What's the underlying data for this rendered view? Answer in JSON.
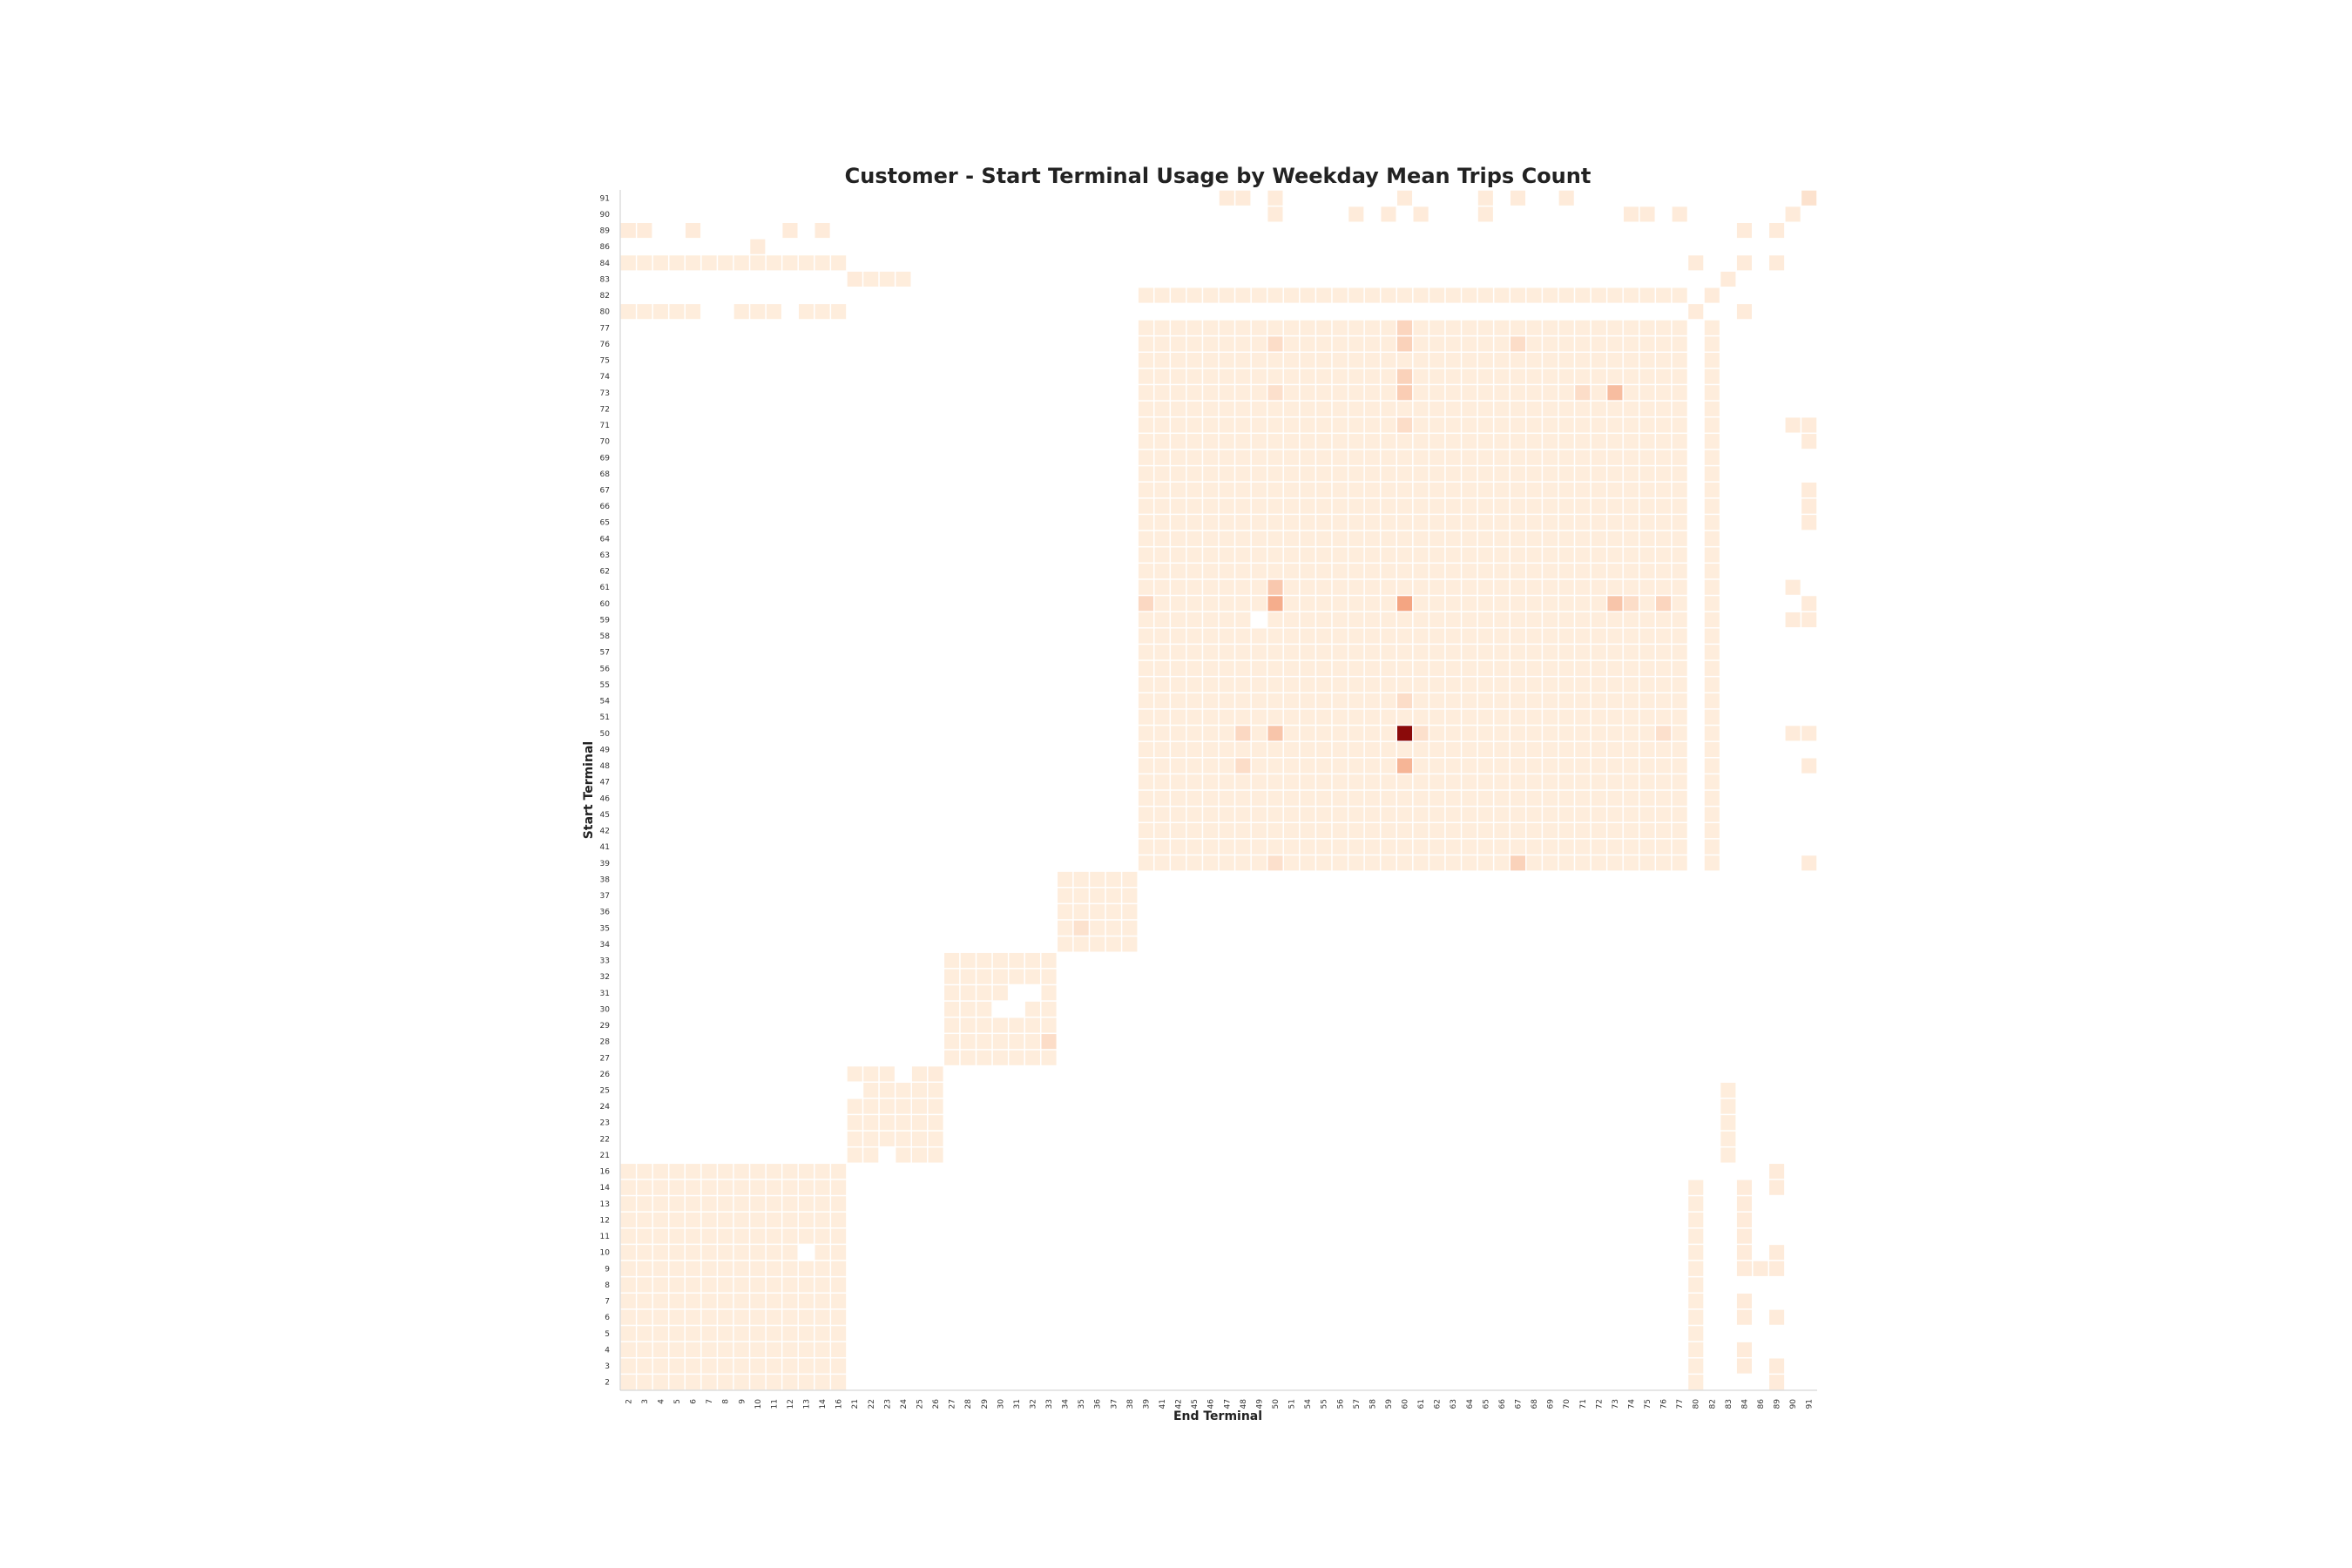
{
  "chart_data": {
    "type": "heatmap",
    "title": "Customer - Start Terminal Usage by Weekday Mean Trips Count",
    "xlabel": "End Terminal",
    "ylabel": "Start Terminal",
    "terminals": [
      "2",
      "3",
      "4",
      "5",
      "6",
      "7",
      "8",
      "9",
      "10",
      "11",
      "12",
      "13",
      "14",
      "16",
      "21",
      "22",
      "23",
      "24",
      "25",
      "26",
      "27",
      "28",
      "29",
      "30",
      "31",
      "32",
      "33",
      "34",
      "35",
      "36",
      "37",
      "38",
      "39",
      "41",
      "42",
      "45",
      "46",
      "47",
      "48",
      "49",
      "50",
      "51",
      "54",
      "55",
      "56",
      "57",
      "58",
      "59",
      "60",
      "61",
      "62",
      "63",
      "64",
      "65",
      "66",
      "67",
      "68",
      "69",
      "70",
      "71",
      "72",
      "73",
      "74",
      "75",
      "76",
      "77",
      "80",
      "82",
      "83",
      "84",
      "86",
      "89",
      "90",
      "91"
    ],
    "color_scale": {
      "low": "#fff5e6",
      "mid": "#f4a582",
      "high": "#8b0a0a",
      "min": 0,
      "max": 1
    },
    "blocks": [
      {
        "rows": [
          "2",
          "3",
          "4",
          "5",
          "6",
          "7",
          "8",
          "9",
          "10",
          "11",
          "12",
          "13",
          "14",
          "16"
        ],
        "cols": [
          "2",
          "3",
          "4",
          "5",
          "6",
          "7",
          "8",
          "9",
          "10",
          "11",
          "12",
          "13",
          "14",
          "16"
        ],
        "value": 0.05
      },
      {
        "rows": [
          "21",
          "22",
          "23",
          "24",
          "25",
          "26"
        ],
        "cols": [
          "21",
          "22",
          "23",
          "24",
          "25",
          "26"
        ],
        "value": 0.05
      },
      {
        "rows": [
          "27",
          "28",
          "29",
          "30",
          "31",
          "32",
          "33"
        ],
        "cols": [
          "27",
          "28",
          "29",
          "30",
          "31",
          "32",
          "33"
        ],
        "value": 0.05
      },
      {
        "rows": [
          "34",
          "35",
          "36",
          "37",
          "38"
        ],
        "cols": [
          "34",
          "35",
          "36",
          "37",
          "38"
        ],
        "value": 0.05
      },
      {
        "rows": [
          "39",
          "41",
          "42",
          "45",
          "46",
          "47",
          "48",
          "49",
          "50",
          "51",
          "54",
          "55",
          "56",
          "57",
          "58",
          "59",
          "60",
          "61",
          "62",
          "63",
          "64",
          "65",
          "66",
          "67",
          "68",
          "69",
          "70",
          "71",
          "72",
          "73",
          "74",
          "75",
          "76",
          "77"
        ],
        "cols": [
          "39",
          "41",
          "42",
          "45",
          "46",
          "47",
          "48",
          "49",
          "50",
          "51",
          "54",
          "55",
          "56",
          "57",
          "58",
          "59",
          "60",
          "61",
          "62",
          "63",
          "64",
          "65",
          "66",
          "67",
          "68",
          "69",
          "70",
          "71",
          "72",
          "73",
          "74",
          "75",
          "76",
          "77"
        ],
        "value": 0.05
      },
      {
        "rows": [
          "39",
          "41",
          "42",
          "45",
          "46",
          "47",
          "48",
          "49",
          "50",
          "51",
          "54",
          "55",
          "56",
          "57",
          "58",
          "59",
          "60",
          "61",
          "62",
          "63",
          "64",
          "65",
          "66",
          "67",
          "68",
          "69",
          "70",
          "71",
          "72",
          "73",
          "74",
          "75",
          "76",
          "77"
        ],
        "cols": [
          "82"
        ],
        "value": 0.05
      },
      {
        "rows": [
          "82"
        ],
        "cols": [
          "39",
          "41",
          "42",
          "45",
          "46",
          "47",
          "48",
          "49",
          "50",
          "51",
          "54",
          "55",
          "56",
          "57",
          "58",
          "59",
          "60",
          "61",
          "62",
          "63",
          "64",
          "65",
          "66",
          "67",
          "68",
          "69",
          "70",
          "71",
          "72",
          "73",
          "74",
          "75",
          "76",
          "77"
        ],
        "value": 0.05
      },
      {
        "rows": [
          "84"
        ],
        "cols": [
          "2",
          "3",
          "4",
          "5",
          "6",
          "7",
          "8",
          "9",
          "10",
          "11",
          "12",
          "13",
          "14",
          "16"
        ],
        "value": 0.05
      },
      {
        "rows": [
          "80"
        ],
        "cols": [
          "2",
          "3",
          "4",
          "5",
          "6",
          "9",
          "10",
          "11",
          "13",
          "14",
          "16"
        ],
        "value": 0.05
      },
      {
        "rows": [
          "2",
          "3",
          "4",
          "5",
          "6",
          "7",
          "8",
          "9",
          "10",
          "11",
          "12",
          "13",
          "14"
        ],
        "cols": [
          "80"
        ],
        "value": 0.05
      },
      {
        "rows": [
          "21",
          "22",
          "23",
          "24",
          "25"
        ],
        "cols": [
          "83"
        ],
        "value": 0.05
      },
      {
        "rows": [
          "83"
        ],
        "cols": [
          "22",
          "23",
          "24"
        ],
        "value": 0.05
      }
    ],
    "highlights": [
      {
        "row": "50",
        "col": "60",
        "value": 1.0
      },
      {
        "row": "60",
        "col": "60",
        "value": 0.5
      },
      {
        "row": "60",
        "col": "50",
        "value": 0.45
      },
      {
        "row": "48",
        "col": "60",
        "value": 0.4
      },
      {
        "row": "73",
        "col": "73",
        "value": 0.35
      },
      {
        "row": "60",
        "col": "73",
        "value": 0.3
      },
      {
        "row": "50",
        "col": "50",
        "value": 0.3
      },
      {
        "row": "61",
        "col": "50",
        "value": 0.28
      },
      {
        "row": "73",
        "col": "60",
        "value": 0.25
      },
      {
        "row": "74",
        "col": "60",
        "value": 0.22
      },
      {
        "row": "76",
        "col": "60",
        "value": 0.22
      },
      {
        "row": "77",
        "col": "60",
        "value": 0.2
      },
      {
        "row": "39",
        "col": "67",
        "value": 0.22
      },
      {
        "row": "60",
        "col": "76",
        "value": 0.2
      },
      {
        "row": "60",
        "col": "39",
        "value": 0.18
      },
      {
        "row": "50",
        "col": "48",
        "value": 0.18
      },
      {
        "row": "48",
        "col": "48",
        "value": 0.15
      },
      {
        "row": "76",
        "col": "50",
        "value": 0.15
      },
      {
        "row": "76",
        "col": "67",
        "value": 0.15
      },
      {
        "row": "73",
        "col": "71",
        "value": 0.15
      },
      {
        "row": "60",
        "col": "74",
        "value": 0.15
      },
      {
        "row": "54",
        "col": "60",
        "value": 0.15
      },
      {
        "row": "71",
        "col": "60",
        "value": 0.15
      },
      {
        "row": "50",
        "col": "61",
        "value": 0.13
      },
      {
        "row": "50",
        "col": "76",
        "value": 0.13
      },
      {
        "row": "39",
        "col": "50",
        "value": 0.13
      },
      {
        "row": "73",
        "col": "50",
        "value": 0.13
      },
      {
        "row": "35",
        "col": "35",
        "value": 0.12
      },
      {
        "row": "28",
        "col": "33",
        "value": 0.15
      },
      {
        "row": "91",
        "col": "91",
        "value": 0.12
      }
    ],
    "missing": [
      {
        "row": "59",
        "col": "49"
      },
      {
        "row": "10",
        "col": "13"
      },
      {
        "row": "30",
        "col": "30"
      },
      {
        "row": "31",
        "col": "31"
      },
      {
        "row": "31",
        "col": "32"
      },
      {
        "row": "30",
        "col": "31"
      },
      {
        "row": "21",
        "col": "23"
      },
      {
        "row": "26",
        "col": "24"
      },
      {
        "row": "25",
        "col": "21"
      }
    ],
    "sparse": [
      {
        "row": "91",
        "col": "47"
      },
      {
        "row": "91",
        "col": "48"
      },
      {
        "row": "91",
        "col": "50"
      },
      {
        "row": "91",
        "col": "60"
      },
      {
        "row": "91",
        "col": "65"
      },
      {
        "row": "91",
        "col": "67"
      },
      {
        "row": "91",
        "col": "70"
      },
      {
        "row": "90",
        "col": "50"
      },
      {
        "row": "90",
        "col": "57"
      },
      {
        "row": "90",
        "col": "59"
      },
      {
        "row": "90",
        "col": "61"
      },
      {
        "row": "90",
        "col": "65"
      },
      {
        "row": "90",
        "col": "74"
      },
      {
        "row": "90",
        "col": "75"
      },
      {
        "row": "90",
        "col": "77"
      },
      {
        "row": "90",
        "col": "90"
      },
      {
        "row": "89",
        "col": "2"
      },
      {
        "row": "89",
        "col": "3"
      },
      {
        "row": "89",
        "col": "6"
      },
      {
        "row": "89",
        "col": "12"
      },
      {
        "row": "89",
        "col": "14"
      },
      {
        "row": "89",
        "col": "84"
      },
      {
        "row": "89",
        "col": "89"
      },
      {
        "row": "86",
        "col": "10"
      },
      {
        "row": "84",
        "col": "80"
      },
      {
        "row": "84",
        "col": "84"
      },
      {
        "row": "84",
        "col": "89"
      },
      {
        "row": "83",
        "col": "21"
      },
      {
        "row": "83",
        "col": "83"
      },
      {
        "row": "82",
        "col": "82"
      },
      {
        "row": "80",
        "col": "80"
      },
      {
        "row": "80",
        "col": "84"
      },
      {
        "row": "71",
        "col": "90"
      },
      {
        "row": "71",
        "col": "91"
      },
      {
        "row": "70",
        "col": "91"
      },
      {
        "row": "67",
        "col": "91"
      },
      {
        "row": "66",
        "col": "91"
      },
      {
        "row": "65",
        "col": "91"
      },
      {
        "row": "61",
        "col": "90"
      },
      {
        "row": "60",
        "col": "91"
      },
      {
        "row": "59",
        "col": "90"
      },
      {
        "row": "59",
        "col": "91"
      },
      {
        "row": "50",
        "col": "90"
      },
      {
        "row": "50",
        "col": "91"
      },
      {
        "row": "48",
        "col": "91"
      },
      {
        "row": "39",
        "col": "91"
      },
      {
        "row": "16",
        "col": "89"
      },
      {
        "row": "14",
        "col": "84"
      },
      {
        "row": "14",
        "col": "89"
      },
      {
        "row": "13",
        "col": "84"
      },
      {
        "row": "12",
        "col": "84"
      },
      {
        "row": "11",
        "col": "84"
      },
      {
        "row": "10",
        "col": "84"
      },
      {
        "row": "10",
        "col": "89"
      },
      {
        "row": "9",
        "col": "84"
      },
      {
        "row": "9",
        "col": "86"
      },
      {
        "row": "9",
        "col": "89"
      },
      {
        "row": "7",
        "col": "84"
      },
      {
        "row": "6",
        "col": "84"
      },
      {
        "row": "6",
        "col": "89"
      },
      {
        "row": "4",
        "col": "84"
      },
      {
        "row": "3",
        "col": "84"
      },
      {
        "row": "3",
        "col": "89"
      },
      {
        "row": "2",
        "col": "89"
      },
      {
        "row": "26",
        "col": "26"
      }
    ],
    "sparse_value": 0.06
  }
}
